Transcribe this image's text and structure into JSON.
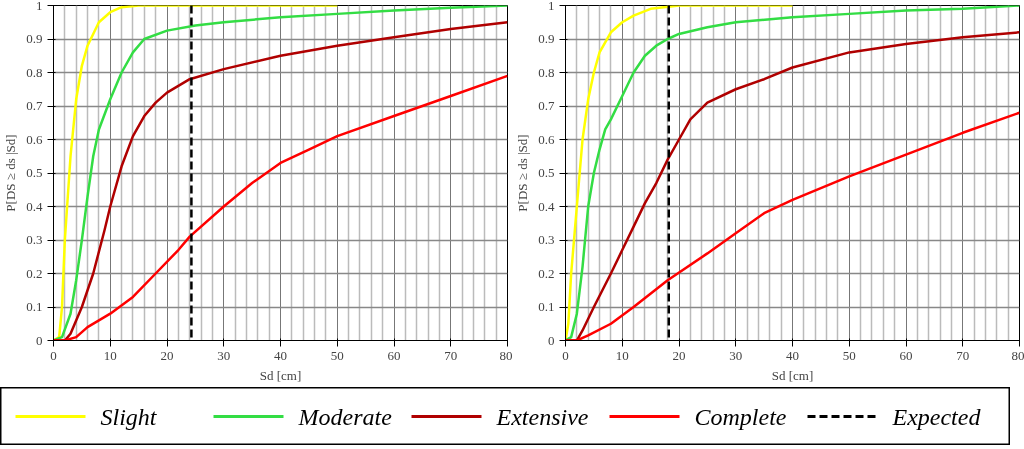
{
  "chart_data": [
    {
      "type": "line",
      "xlabel": "Sd [cm]",
      "ylabel": "P[DS ≥ ds |Sd]",
      "xlim": [
        0,
        80
      ],
      "ylim": [
        0,
        1
      ],
      "xticks": [
        0,
        10,
        20,
        30,
        40,
        50,
        60,
        70,
        80
      ],
      "yticks": [
        0,
        0.1,
        0.2,
        0.3,
        0.4,
        0.5,
        0.6,
        0.7,
        0.8,
        0.9,
        1
      ],
      "grid": true,
      "legend": "bottom",
      "line_style": "solid",
      "marker": "none",
      "series": [
        {
          "name": "Slight",
          "color": "#ffff00",
          "x": [
            0,
            1,
            1.5,
            2,
            3,
            4,
            5,
            6,
            8,
            10,
            12,
            15,
            50
          ],
          "values": [
            0,
            0.01,
            0.1,
            0.3,
            0.55,
            0.72,
            0.82,
            0.88,
            0.95,
            0.98,
            0.995,
            1,
            1
          ]
        },
        {
          "name": "Moderate",
          "color": "#33dd44",
          "x": [
            0,
            1.5,
            3,
            4,
            5,
            6,
            7,
            8,
            10,
            12,
            14,
            16,
            20,
            25,
            30,
            40,
            50,
            60,
            70,
            80
          ],
          "values": [
            0,
            0.01,
            0.08,
            0.18,
            0.3,
            0.43,
            0.55,
            0.63,
            0.72,
            0.8,
            0.86,
            0.9,
            0.925,
            0.94,
            0.95,
            0.965,
            0.975,
            0.985,
            0.993,
            1
          ]
        },
        {
          "name": "Extensive",
          "color": "#b00000",
          "x": [
            0,
            2,
            3,
            5,
            7,
            9,
            10,
            12,
            14,
            16,
            18,
            20,
            24,
            30,
            40,
            50,
            60,
            70,
            80
          ],
          "values": [
            0,
            0,
            0.02,
            0.1,
            0.2,
            0.33,
            0.4,
            0.52,
            0.61,
            0.67,
            0.71,
            0.74,
            0.78,
            0.81,
            0.85,
            0.88,
            0.905,
            0.93,
            0.95
          ]
        },
        {
          "name": "Complete",
          "color": "#ff0000",
          "x": [
            0,
            2,
            4,
            6,
            10,
            14,
            18,
            22,
            24,
            30,
            35,
            40,
            45,
            50,
            60,
            70,
            80
          ],
          "values": [
            0,
            0,
            0.01,
            0.04,
            0.08,
            0.13,
            0.2,
            0.27,
            0.31,
            0.4,
            0.47,
            0.53,
            0.57,
            0.61,
            0.67,
            0.73,
            0.79
          ]
        }
      ],
      "ref_lines": [
        {
          "axis": "x",
          "value": 24.3,
          "label": "Expected",
          "color": "#000000",
          "line_style": "dashed"
        }
      ]
    },
    {
      "type": "line",
      "xlabel": "Sd [cm]",
      "ylabel": "P[DS ≥ ds |Sd]",
      "xlim": [
        0,
        80
      ],
      "ylim": [
        0,
        1
      ],
      "xticks": [
        0,
        10,
        20,
        30,
        40,
        50,
        60,
        70,
        80
      ],
      "yticks": [
        0,
        0.1,
        0.2,
        0.3,
        0.4,
        0.5,
        0.6,
        0.7,
        0.8,
        0.9,
        1
      ],
      "grid": true,
      "line_style": "solid",
      "marker": "none",
      "series": [
        {
          "color": "#ffff00",
          "x": [
            0,
            0.5,
            1,
            2,
            3,
            4,
            5,
            6,
            8,
            10,
            12,
            15,
            20,
            40
          ],
          "values": [
            0,
            0.05,
            0.2,
            0.4,
            0.6,
            0.72,
            0.8,
            0.86,
            0.92,
            0.95,
            0.97,
            0.99,
            1,
            1
          ]
        },
        {
          "color": "#33dd44",
          "x": [
            0,
            1,
            2,
            3,
            4,
            5,
            6,
            7,
            8,
            10,
            12,
            14,
            16,
            18,
            20,
            25,
            30,
            40,
            50,
            60,
            70,
            80
          ],
          "values": [
            0,
            0.01,
            0.08,
            0.22,
            0.4,
            0.5,
            0.57,
            0.63,
            0.66,
            0.73,
            0.8,
            0.85,
            0.88,
            0.9,
            0.915,
            0.935,
            0.95,
            0.965,
            0.975,
            0.985,
            0.99,
            1
          ]
        },
        {
          "color": "#b00000",
          "x": [
            0,
            2,
            3,
            5,
            8,
            10,
            12,
            14,
            16,
            18,
            20,
            22,
            25,
            30,
            35,
            40,
            50,
            60,
            70,
            80
          ],
          "values": [
            0,
            0,
            0.03,
            0.1,
            0.2,
            0.27,
            0.34,
            0.41,
            0.47,
            0.54,
            0.6,
            0.66,
            0.71,
            0.75,
            0.78,
            0.815,
            0.86,
            0.885,
            0.905,
            0.92
          ]
        },
        {
          "color": "#ff0000",
          "x": [
            0,
            2,
            4,
            8,
            12,
            18,
            25,
            30,
            35,
            40,
            50,
            60,
            70,
            80
          ],
          "values": [
            0,
            0,
            0.015,
            0.05,
            0.1,
            0.18,
            0.26,
            0.32,
            0.38,
            0.42,
            0.49,
            0.555,
            0.62,
            0.68
          ]
        }
      ],
      "ref_lines": [
        {
          "axis": "x",
          "value": 18.2,
          "color": "#000000",
          "line_style": "dashed"
        }
      ]
    }
  ]
}
